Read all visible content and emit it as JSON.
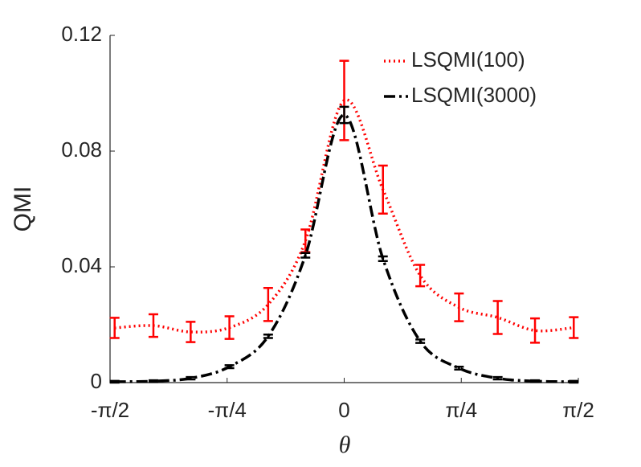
{
  "chart_data": {
    "type": "line",
    "x_label": "θ",
    "y_label": "QMI",
    "x": [
      -1.54,
      -1.28,
      -1.03,
      -0.77,
      -0.51,
      -0.26,
      0,
      0.26,
      0.51,
      0.77,
      1.03,
      1.28,
      1.54
    ],
    "series": [
      {
        "name": "LSQMI(100)",
        "color": "#ff0000",
        "dash": "dotted",
        "values": [
          0.0189,
          0.0197,
          0.0175,
          0.019,
          0.027,
          0.049,
          0.0975,
          0.0667,
          0.037,
          0.026,
          0.0225,
          0.018,
          0.019
        ],
        "errors": [
          0.0035,
          0.0039,
          0.0035,
          0.0039,
          0.0057,
          0.0039,
          0.0137,
          0.0083,
          0.0037,
          0.0048,
          0.0057,
          0.0042,
          0.0036
        ]
      },
      {
        "name": "LSQMI(3000)",
        "color": "#000000",
        "dash": "dashdot",
        "values": [
          0.0003,
          0.0005,
          0.0015,
          0.0055,
          0.016,
          0.044,
          0.0925,
          0.0428,
          0.0143,
          0.005,
          0.0015,
          0.0005,
          0.0003
        ],
        "errors": [
          0.0003,
          0.0003,
          0.0004,
          0.0005,
          0.0006,
          0.0008,
          0.0028,
          0.0008,
          0.0006,
          0.0005,
          0.0004,
          0.0003,
          0.0003
        ]
      }
    ],
    "xlim": [
      -1.5708,
      1.5708
    ],
    "xticks": [
      {
        "value": -1.5708,
        "label": "-π/2"
      },
      {
        "value": -0.7854,
        "label": "-π/4"
      },
      0,
      {
        "value": 0.7854,
        "label": "π/4"
      },
      {
        "value": 1.5708,
        "label": "π/2"
      }
    ],
    "ylim": [
      0,
      0.12
    ],
    "yticks": [
      0,
      0.04,
      0.08,
      0.12
    ],
    "legend": "upper right"
  }
}
